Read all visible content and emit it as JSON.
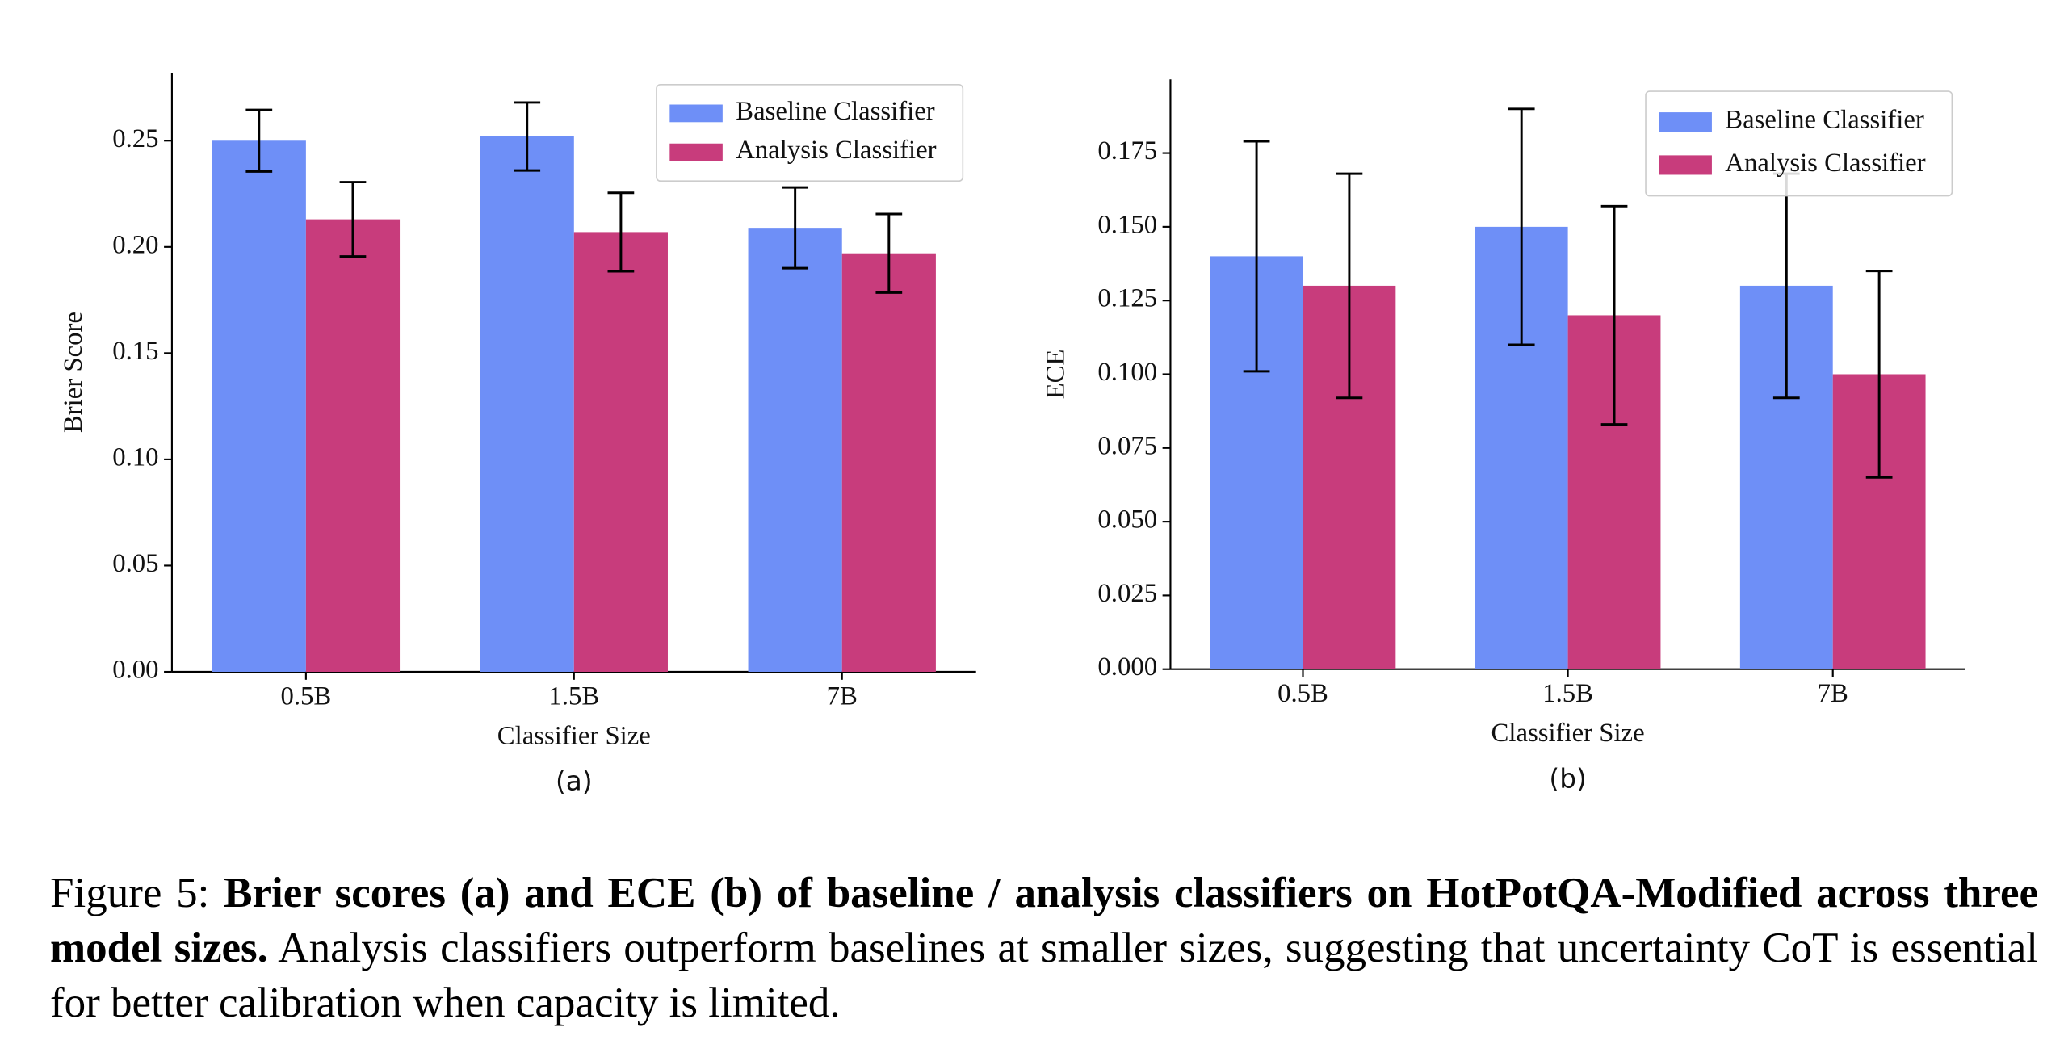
{
  "chart_data": [
    {
      "type": "bar",
      "label": "(a)",
      "xlabel": "Classifier Size",
      "ylabel": "Brier Score",
      "categories": [
        "0.5B",
        "1.5B",
        "7B"
      ],
      "series": [
        {
          "name": "Baseline Classifier",
          "color": "#6e8ff7",
          "values": [
            0.25,
            0.252,
            0.209
          ],
          "errors": [
            0.0145,
            0.016,
            0.019
          ]
        },
        {
          "name": "Analysis Classifier",
          "color": "#c83c7c",
          "values": [
            0.213,
            0.207,
            0.197
          ],
          "errors": [
            0.0175,
            0.0185,
            0.0185
          ]
        }
      ],
      "ylim": [
        0,
        0.282
      ],
      "yticks": [
        {
          "value": 0,
          "label": "0.00"
        },
        0.05,
        {
          "value": 0.1,
          "label": "0.10"
        },
        0.15,
        {
          "value": 0.2,
          "label": "0.20"
        },
        0.25
      ],
      "legend": "upper right"
    },
    {
      "type": "bar",
      "label": "(b)",
      "xlabel": "Classifier Size",
      "ylabel": "ECE",
      "categories": [
        "0.5B",
        "1.5B",
        "7B"
      ],
      "series": [
        {
          "name": "Baseline Classifier",
          "color": "#6e8ff7",
          "values": [
            0.14,
            0.15,
            0.13
          ],
          "errors": [
            0.039,
            0.04,
            0.038
          ]
        },
        {
          "name": "Analysis Classifier",
          "color": "#c83c7c",
          "values": [
            0.13,
            0.12,
            0.1
          ],
          "errors": [
            0.038,
            0.037,
            0.035
          ]
        }
      ],
      "ylim": [
        0,
        0.2
      ],
      "yticks": [
        {
          "value": 0,
          "label": "0.000"
        },
        0.025,
        {
          "value": 0.05,
          "label": "0.050"
        },
        0.075,
        {
          "value": 0.1,
          "label": "0.100"
        },
        0.125,
        {
          "value": 0.15,
          "label": "0.150"
        },
        0.175
      ],
      "legend": "upper right"
    }
  ],
  "caption": {
    "prefix": "Figure 5:",
    "bold": "Brier scores (a) and ECE (b) of baseline / analysis classifiers on HotPotQA-Modified across three model sizes.",
    "text": "Analysis classifiers outperform baselines at smaller sizes, suggesting that uncertainty CoT is essential for better calibration when capacity is limited."
  }
}
